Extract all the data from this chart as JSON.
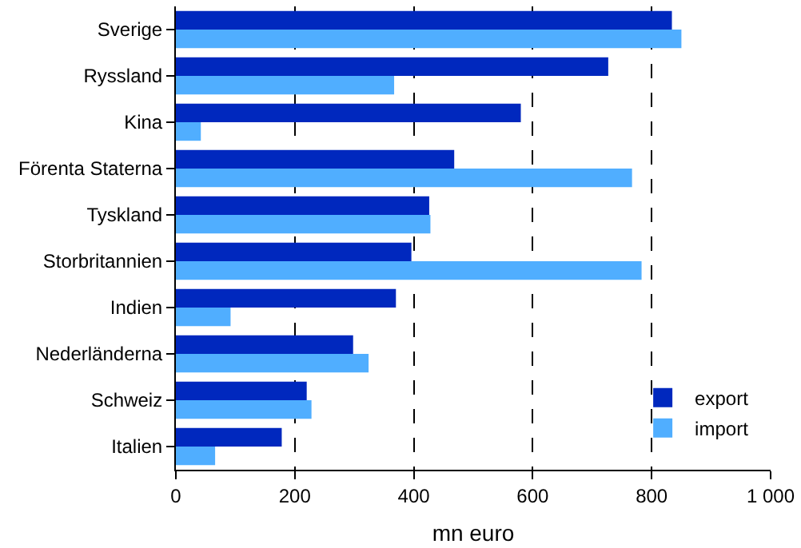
{
  "chart_data": {
    "type": "bar",
    "orientation": "horizontal",
    "xlabel": "mn euro",
    "categories": [
      "Sverige",
      "Ryssland",
      "Kina",
      "Förenta Staterna",
      "Tyskland",
      "Storbritannien",
      "Indien",
      "Nederländerna",
      "Schweiz",
      "Italien"
    ],
    "series": [
      {
        "name": "export",
        "color": "#0028be",
        "values": [
          834,
          727,
          580,
          468,
          426,
          396,
          370,
          298,
          220,
          178
        ]
      },
      {
        "name": "import",
        "color": "#50aeff",
        "values": [
          850,
          367,
          42,
          767,
          428,
          783,
          92,
          324,
          228,
          66
        ]
      }
    ],
    "xlim": [
      0,
      1000
    ],
    "xticks": [
      0,
      200,
      400,
      600,
      800,
      {
        "value": 1000,
        "label": "1 000"
      }
    ],
    "grid": "x",
    "legend": "bottom right"
  }
}
